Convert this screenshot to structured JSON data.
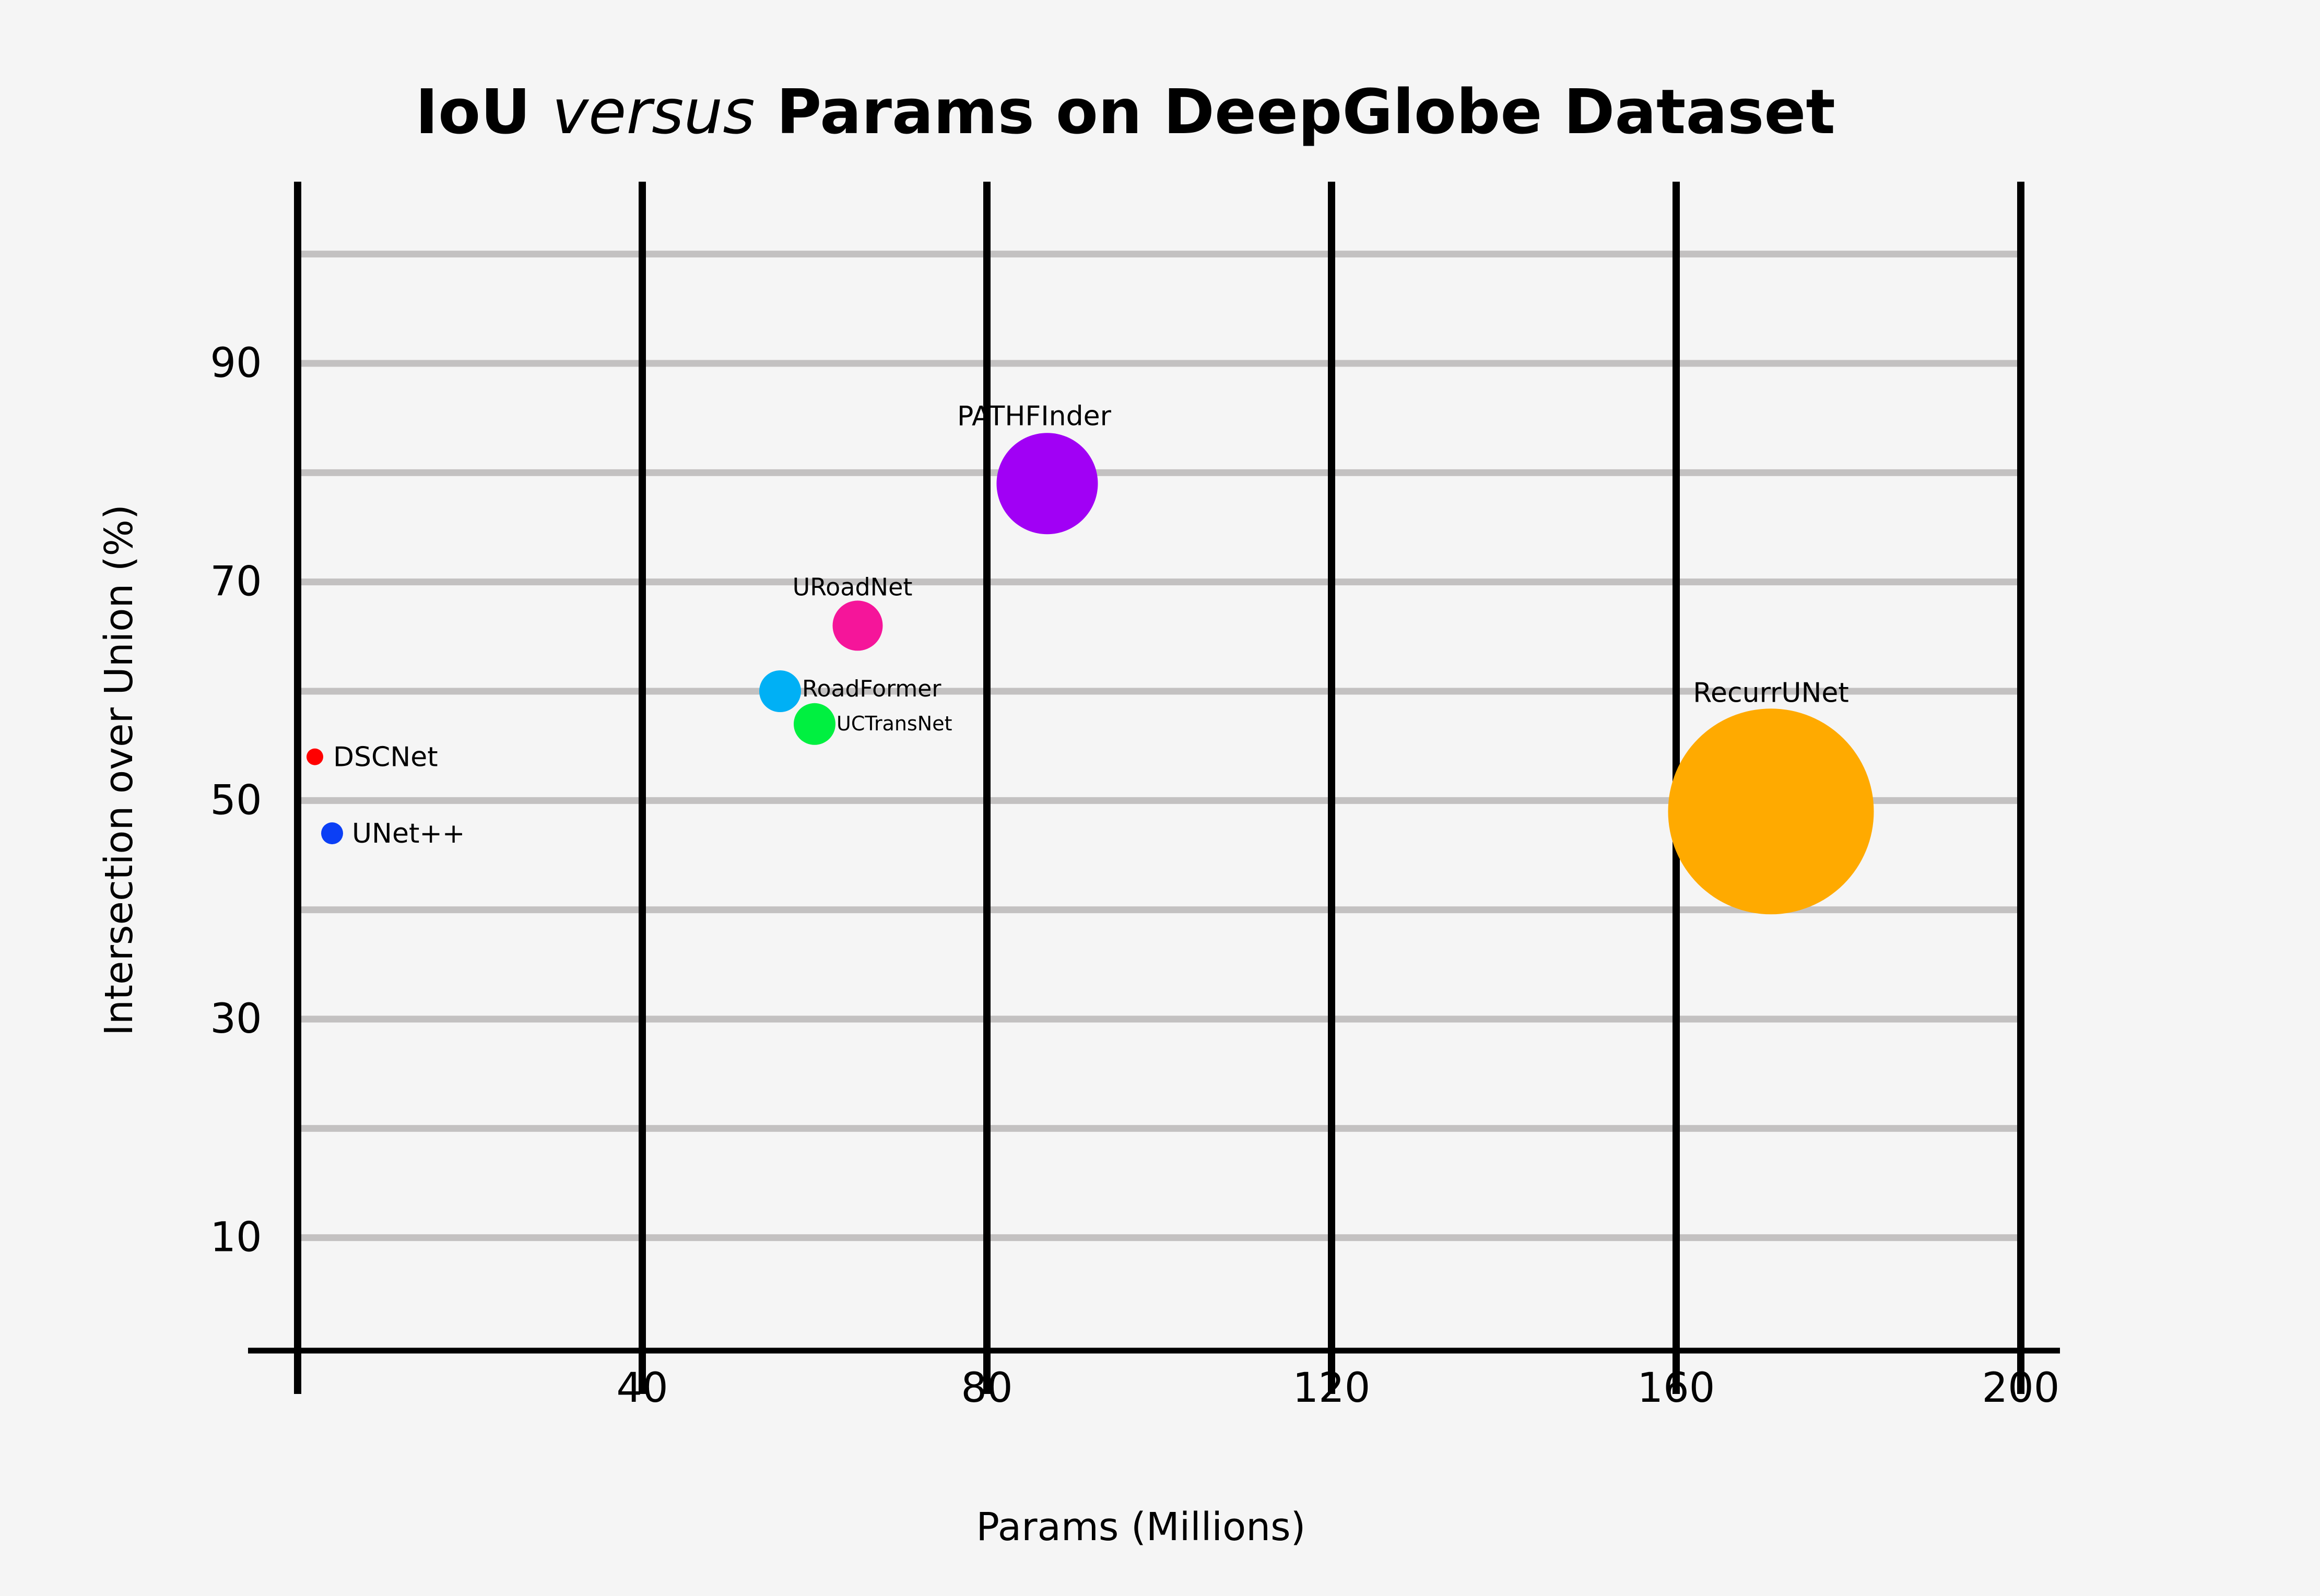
{
  "chart_data": {
    "type": "scatter",
    "title_parts": [
      "IoU ",
      "versus",
      " Params on DeepGlobe Dataset"
    ],
    "xlabel": "Params (Millions)",
    "ylabel": "Intersection over Union (%)",
    "x_ticks": [
      "40",
      "80",
      "120",
      "160",
      "200"
    ],
    "y_ticks": [
      "90",
      "70",
      "50",
      "30",
      "10"
    ],
    "grid": true,
    "points": [
      {
        "name": "DSCNet",
        "params": 2,
        "iou": 54,
        "color": "#ff0000"
      },
      {
        "name": "UNet++",
        "params": 4,
        "iou": 47,
        "color": "#0b3ff5"
      },
      {
        "name": "RoadFormer",
        "params": 56,
        "iou": 60,
        "color": "#00b0f5"
      },
      {
        "name": "UCTransNet",
        "params": 60,
        "iou": 57,
        "color": "#00f040"
      },
      {
        "name": "URoadNet",
        "params": 65,
        "iou": 66,
        "color": "#f5159a"
      },
      {
        "name": "PATHFInder",
        "params": 87,
        "iou": 79,
        "color": "#a100f5"
      },
      {
        "name": "RecurrUNet",
        "params": 171,
        "iou": 49,
        "color": "#ffaa00"
      }
    ]
  }
}
